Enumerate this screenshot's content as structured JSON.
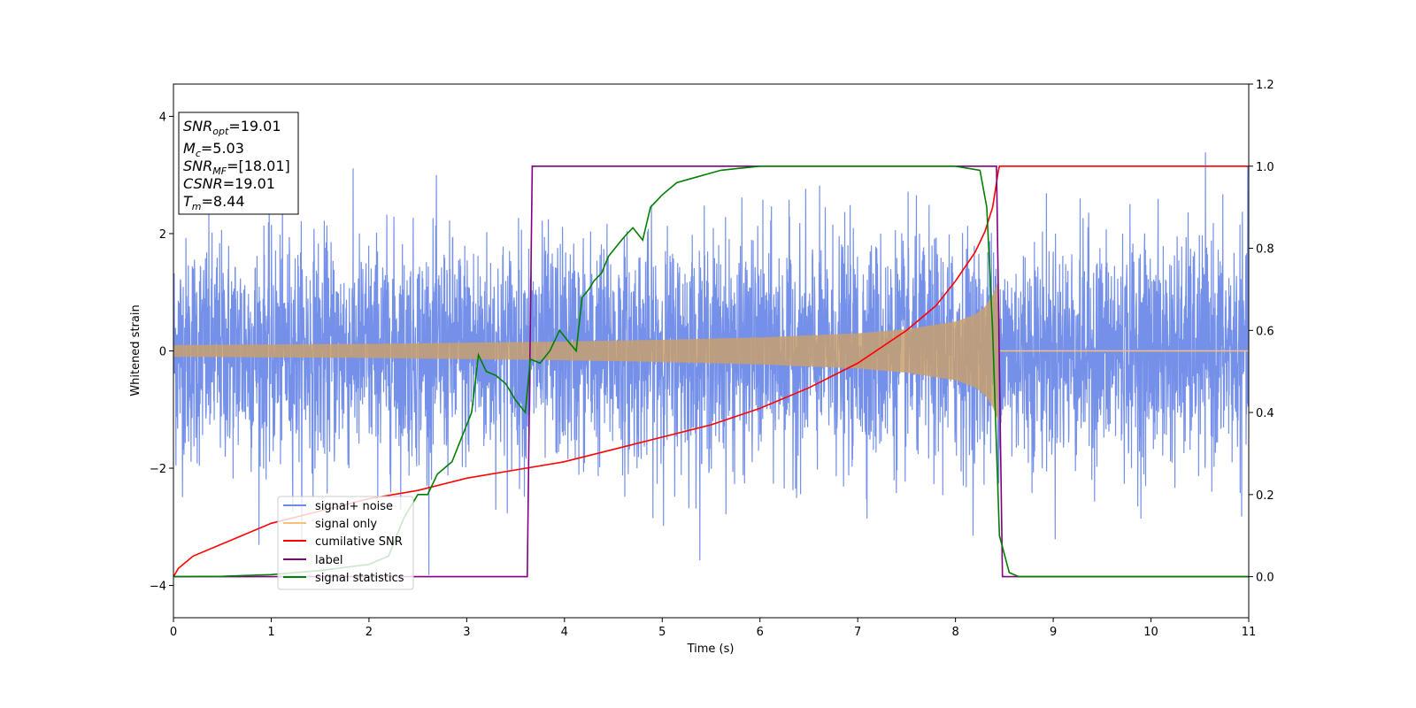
{
  "chart_data": {
    "type": "line",
    "xlabel": "Time (s)",
    "ylabel": "Whitened strain",
    "xlim": [
      0,
      11
    ],
    "ylim_left": [
      -4.55,
      4.55
    ],
    "ylim_right": [
      -0.1,
      1.2
    ],
    "x_ticks": [
      "0",
      "1",
      "2",
      "3",
      "4",
      "5",
      "6",
      "7",
      "8",
      "9",
      "10",
      "11"
    ],
    "y_ticks_left": [
      "4",
      "2",
      "0",
      "−2",
      "−4"
    ],
    "y_ticks_left_values": [
      4,
      2,
      0,
      -2,
      -4
    ],
    "y_ticks_right": [
      "1.2",
      "1.0",
      "0.8",
      "0.6",
      "0.4",
      "0.2",
      "0.0"
    ],
    "y_ticks_right_values": [
      1.2,
      1.0,
      0.8,
      0.6,
      0.4,
      0.2,
      0.0
    ],
    "legend_position": "lower-left",
    "info_box": {
      "snr_opt": {
        "sym": "SNR",
        "sub": "opt",
        "value": "=19.01"
      },
      "mc": {
        "sym": "M",
        "sub": "c",
        "value": "=5.03"
      },
      "snr_mf": {
        "sym": "SNR",
        "sub": "MF",
        "value": "=[18.01]"
      },
      "csnr": {
        "sym": "CSNR",
        "value": "=19.01"
      },
      "tm": {
        "sym": "T",
        "sub": "m",
        "value": "=8.44"
      }
    },
    "series": [
      {
        "name": "signal+ noise",
        "color": "#6e8ae8",
        "axis": "left",
        "description": "noise-dominated whitened strain, amplitude roughly ±2 with spikes to ±4, over 0–11 s"
      },
      {
        "name": "signal only",
        "color": "#f5c07a",
        "axis": "left",
        "envelope": {
          "x": [
            0,
            1,
            2,
            3,
            4,
            5,
            6,
            7,
            7.5,
            8,
            8.2,
            8.3,
            8.38,
            8.44,
            8.45,
            11
          ],
          "amp": [
            0.1,
            0.11,
            0.12,
            0.14,
            0.16,
            0.19,
            0.23,
            0.3,
            0.37,
            0.5,
            0.62,
            0.75,
            0.95,
            1.2,
            0,
            0
          ]
        }
      },
      {
        "name": "cumilative SNR",
        "color": "#ff0000",
        "axis": "right",
        "x": [
          0,
          0.05,
          0.2,
          0.5,
          1,
          1.5,
          2,
          2.5,
          3,
          3.5,
          4,
          4.5,
          5,
          5.5,
          6,
          6.5,
          7,
          7.5,
          7.8,
          8,
          8.2,
          8.3,
          8.38,
          8.44,
          8.45,
          11
        ],
        "y": [
          0.0,
          0.02,
          0.05,
          0.08,
          0.13,
          0.16,
          0.19,
          0.21,
          0.24,
          0.26,
          0.28,
          0.31,
          0.34,
          0.37,
          0.41,
          0.46,
          0.52,
          0.6,
          0.66,
          0.72,
          0.79,
          0.84,
          0.9,
          0.99,
          1.0,
          1.0
        ]
      },
      {
        "name": "label",
        "color": "#800080",
        "axis": "right",
        "x": [
          0,
          3.62,
          3.67,
          8.42,
          8.48,
          11
        ],
        "y": [
          0,
          0,
          1,
          1,
          0,
          0
        ]
      },
      {
        "name": "signal statistics",
        "color": "#008000",
        "axis": "right",
        "x": [
          0,
          0.5,
          1,
          1.5,
          2,
          2.2,
          2.35,
          2.5,
          2.6,
          2.7,
          2.75,
          2.85,
          2.95,
          3.05,
          3.12,
          3.2,
          3.3,
          3.4,
          3.5,
          3.6,
          3.65,
          3.75,
          3.85,
          3.95,
          4.05,
          4.12,
          4.18,
          4.25,
          4.3,
          4.38,
          4.45,
          4.55,
          4.62,
          4.7,
          4.8,
          4.88,
          5,
          5.15,
          5.3,
          5.45,
          5.6,
          5.8,
          6,
          6.5,
          7,
          7.5,
          8,
          8.25,
          8.32,
          8.38,
          8.45,
          8.55,
          8.65,
          9,
          11
        ],
        "y": [
          0,
          0.001,
          0.005,
          0.015,
          0.03,
          0.05,
          0.14,
          0.2,
          0.2,
          0.25,
          0.26,
          0.28,
          0.34,
          0.4,
          0.54,
          0.5,
          0.49,
          0.47,
          0.43,
          0.4,
          0.53,
          0.52,
          0.55,
          0.6,
          0.57,
          0.55,
          0.68,
          0.7,
          0.72,
          0.74,
          0.78,
          0.81,
          0.83,
          0.85,
          0.82,
          0.9,
          0.93,
          0.96,
          0.97,
          0.98,
          0.99,
          0.995,
          1.0,
          1.0,
          1.0,
          1.0,
          1.0,
          0.99,
          0.9,
          0.6,
          0.1,
          0.01,
          0.0,
          0.0,
          0.0
        ]
      }
    ]
  }
}
